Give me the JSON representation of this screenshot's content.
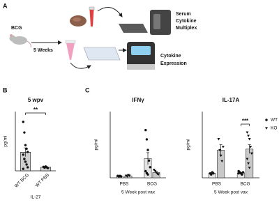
{
  "panel_labels": [
    "A",
    "B",
    "C"
  ],
  "diagram": {
    "start_label": "BCG",
    "interval": "5 Weeks",
    "serum_lines": [
      "Serum",
      "Cytokine",
      "Multiplex"
    ],
    "expression_lines": [
      "Cytokine",
      "Expression"
    ]
  },
  "chart_data": [
    {
      "type": "bar",
      "title": "5 wpv",
      "y_label": "pg/ml",
      "x_label": "IL-27",
      "categories": [
        "WT BCG",
        "WT PBS"
      ],
      "values": [
        4.7,
        0.9
      ],
      "errors": [
        1.1,
        0.1
      ],
      "points": [
        [
          12.4,
          9.7,
          6.5,
          5.6,
          4.8,
          4.1,
          3.0,
          2.3,
          1.6,
          0.9,
          0.5
        ],
        [
          1.0,
          0.8,
          1.1,
          0.9,
          0.7
        ]
      ],
      "color": "#cfcfcf",
      "ylim": [
        0,
        15
      ],
      "significance": "**"
    },
    {
      "type": "grouped_bar",
      "title": "IFNγ",
      "y_label": "pg/ml",
      "x_label": "5 Week post vax",
      "categories": [
        "PBS",
        "BCG"
      ],
      "series": [
        {
          "name": "WT",
          "marker": "circle",
          "color": "#e3e3e3",
          "values": [
            0.25,
            2.9
          ],
          "errors": [
            0.05,
            0.9
          ],
          "points": [
            [
              0.3,
              0.2,
              0.3,
              0.2
            ],
            [
              7.2,
              5.8,
              4.2,
              2.6,
              1.6,
              1.0,
              0.7,
              0.5
            ]
          ]
        },
        {
          "name": "KO",
          "marker": "triangle",
          "color": "#c8c8c8",
          "values": [
            0.3,
            0.8
          ],
          "errors": [
            0.05,
            0.1
          ],
          "points": [
            [
              0.3,
              0.2,
              0.4,
              0.3
            ],
            [
              1.2,
              1.0,
              0.8,
              0.6,
              0.5
            ]
          ]
        }
      ],
      "ylim": [
        0,
        10
      ]
    },
    {
      "type": "grouped_bar",
      "title": "IL-17A",
      "y_label": "pg/ml",
      "x_label": "5 Week post vax",
      "categories": [
        "PBS",
        "BCG"
      ],
      "series": [
        {
          "name": "WT",
          "marker": "circle",
          "color": "#e3e3e3",
          "values": [
            0.04,
            0.045
          ],
          "errors": [
            0.005,
            0.005
          ],
          "points": [
            [
              0.04,
              0.03,
              0.05,
              0.04
            ],
            [
              0.06,
              0.05,
              0.04,
              0.03,
              0.05,
              0.04
            ]
          ]
        },
        {
          "name": "KO",
          "marker": "triangle",
          "color": "#c8c8c8",
          "values": [
            0.25,
            0.26
          ],
          "errors": [
            0.05,
            0.04
          ],
          "points": [
            [
              0.35,
              0.25,
              0.2,
              0.15,
              0.28
            ],
            [
              0.41,
              0.38,
              0.35,
              0.28,
              0.22,
              0.17,
              0.13,
              0.09
            ]
          ]
        }
      ],
      "ylim": [
        0,
        0.6
      ],
      "significance": "***",
      "legend": "right"
    }
  ]
}
